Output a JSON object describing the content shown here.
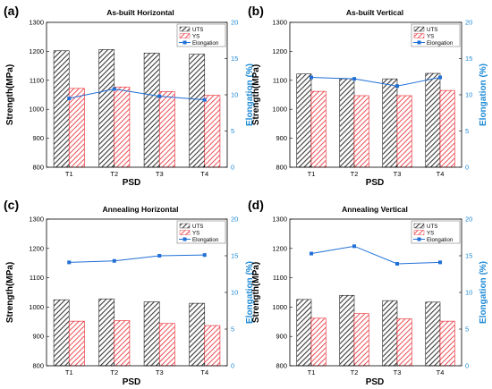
{
  "chart_data": [
    {
      "panel_label": "(a)",
      "type": "bar",
      "title": "As-built Horizontal",
      "xlabel": "PSD",
      "ylabel": "Strength(MPa)",
      "y2label": "Elongation (%)",
      "categories": [
        "T1",
        "T2",
        "T3",
        "T4"
      ],
      "ylim": [
        800,
        1300
      ],
      "y2lim": [
        0,
        20
      ],
      "yticks": [
        "800",
        "900",
        "1000",
        "1100",
        "1200",
        "1300"
      ],
      "y2ticks": [
        "0",
        "5",
        "10",
        "15",
        "20"
      ],
      "grid": false,
      "legend_position": "top-right",
      "series": [
        {
          "name": "UTS",
          "kind": "bar",
          "axis": "left",
          "values": [
            1202,
            1206,
            1194,
            1190
          ]
        },
        {
          "name": "YS",
          "kind": "bar",
          "axis": "left",
          "values": [
            1072,
            1077,
            1061,
            1048
          ]
        },
        {
          "name": "Elongation",
          "kind": "line",
          "axis": "right",
          "values": [
            9.5,
            10.8,
            9.8,
            9.3
          ]
        }
      ]
    },
    {
      "panel_label": "(b)",
      "type": "bar",
      "title": "As-built Vertical",
      "xlabel": "PSD",
      "ylabel": "Strength(MPa)",
      "y2label": "Elongation (%)",
      "categories": [
        "T1",
        "T2",
        "T3",
        "T4"
      ],
      "ylim": [
        800,
        1300
      ],
      "y2lim": [
        0,
        20
      ],
      "yticks": [
        "800",
        "900",
        "1000",
        "1100",
        "1200",
        "1300"
      ],
      "y2ticks": [
        "0",
        "5",
        "10",
        "15",
        "20"
      ],
      "grid": false,
      "legend_position": "top-right",
      "series": [
        {
          "name": "UTS",
          "kind": "bar",
          "axis": "left",
          "values": [
            1122,
            1105,
            1105,
            1124
          ]
        },
        {
          "name": "YS",
          "kind": "bar",
          "axis": "left",
          "values": [
            1062,
            1047,
            1047,
            1065
          ]
        },
        {
          "name": "Elongation",
          "kind": "line",
          "axis": "right",
          "values": [
            12.4,
            12.2,
            11.2,
            12.4
          ]
        }
      ]
    },
    {
      "panel_label": "(c)",
      "type": "bar",
      "title": "Annealing Horizontal",
      "xlabel": "PSD",
      "ylabel": "Strength(MPa)",
      "y2label": "Elongation (%)",
      "categories": [
        "T1",
        "T2",
        "T3",
        "T4"
      ],
      "ylim": [
        800,
        1300
      ],
      "y2lim": [
        0,
        20
      ],
      "yticks": [
        "800",
        "900",
        "1000",
        "1100",
        "1200",
        "1300"
      ],
      "y2ticks": [
        "0",
        "5",
        "10",
        "15",
        "20"
      ],
      "grid": false,
      "legend_position": "top-right",
      "series": [
        {
          "name": "UTS",
          "kind": "bar",
          "axis": "left",
          "values": [
            1025,
            1028,
            1018,
            1013
          ]
        },
        {
          "name": "YS",
          "kind": "bar",
          "axis": "left",
          "values": [
            952,
            954,
            944,
            937
          ]
        },
        {
          "name": "Elongation",
          "kind": "line",
          "axis": "right",
          "values": [
            14.1,
            14.3,
            15.0,
            15.1
          ]
        }
      ]
    },
    {
      "panel_label": "(d)",
      "type": "bar",
      "title": "Annealing Vertical",
      "xlabel": "PSD",
      "ylabel": "Strength(MPa)",
      "y2label": "Elongation (%)",
      "categories": [
        "T1",
        "T2",
        "T3",
        "T4"
      ],
      "ylim": [
        800,
        1300
      ],
      "y2lim": [
        0,
        20
      ],
      "yticks": [
        "800",
        "900",
        "1000",
        "1100",
        "1200",
        "1300"
      ],
      "y2ticks": [
        "0",
        "5",
        "10",
        "15",
        "20"
      ],
      "grid": false,
      "legend_position": "top-right",
      "series": [
        {
          "name": "UTS",
          "kind": "bar",
          "axis": "left",
          "values": [
            1026,
            1040,
            1022,
            1017
          ]
        },
        {
          "name": "YS",
          "kind": "bar",
          "axis": "left",
          "values": [
            962,
            978,
            960,
            952
          ]
        },
        {
          "name": "Elongation",
          "kind": "line",
          "axis": "right",
          "values": [
            15.3,
            16.3,
            13.9,
            14.1
          ]
        }
      ]
    }
  ],
  "colors": {
    "uts_fill": "#ffffff",
    "uts_hatch": "#3a3a3a",
    "ys_fill": "#ffffff",
    "ys_hatch": "#e8222a",
    "elongation": "#1f6fd6",
    "right_axis": "#1f8ad6",
    "axis": "#000000"
  }
}
